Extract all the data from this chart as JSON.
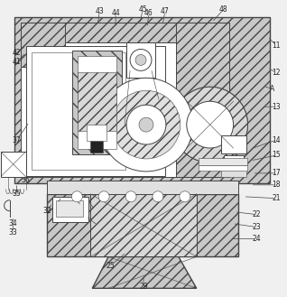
{
  "fig_width": 3.18,
  "fig_height": 3.29,
  "dpi": 100,
  "line_color": "#444444",
  "bg_color": "#f0f0f0",
  "hatch_fc": "#c8c8c8",
  "white": "#ffffff"
}
